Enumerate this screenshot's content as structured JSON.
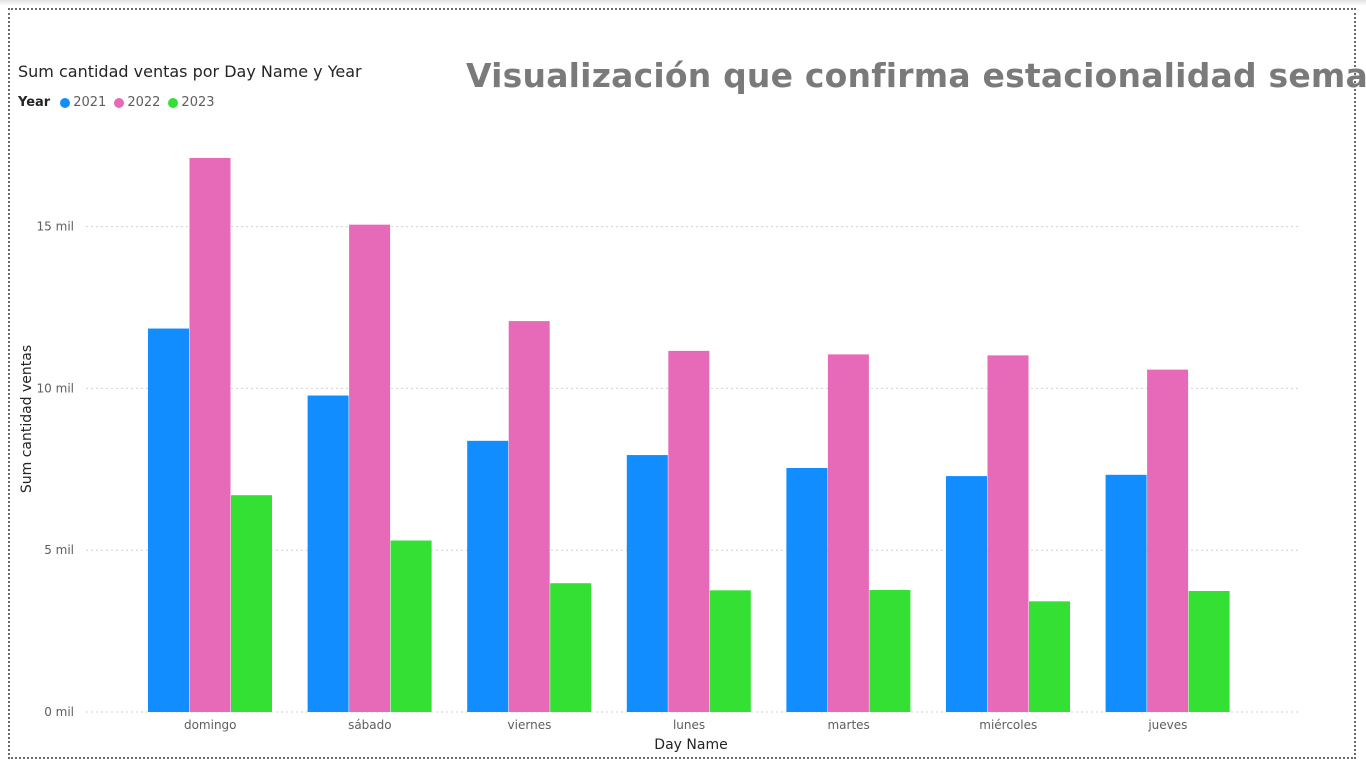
{
  "headline": "Visualización que confirma estacionalidad semanal",
  "legend": {
    "title": "Year",
    "items": [
      {
        "label": "2021",
        "color": "#118dff"
      },
      {
        "label": "2022",
        "color": "#e66ab8"
      },
      {
        "label": "2023",
        "color": "#34e034"
      }
    ]
  },
  "chart_data": {
    "type": "bar",
    "title": "Sum cantidad ventas por Day Name y Year",
    "xlabel": "Day Name",
    "ylabel": "Sum cantidad ventas",
    "categories": [
      "domingo",
      "sábado",
      "viernes",
      "lunes",
      "martes",
      "miércoles",
      "jueves"
    ],
    "series": [
      {
        "name": "2021",
        "color": "#118dff",
        "values": [
          11850,
          9780,
          8380,
          7940,
          7540,
          7290,
          7330
        ]
      },
      {
        "name": "2022",
        "color": "#e66ab8",
        "values": [
          17120,
          15060,
          12080,
          11160,
          11050,
          11020,
          10580
        ]
      },
      {
        "name": "2023",
        "color": "#34e034",
        "values": [
          6700,
          5300,
          3980,
          3760,
          3770,
          3420,
          3740
        ]
      }
    ],
    "yticks": [
      {
        "value": 0,
        "label": "0 mil"
      },
      {
        "value": 5000,
        "label": "5 mil"
      },
      {
        "value": 10000,
        "label": "10 mil"
      },
      {
        "value": 15000,
        "label": "15 mil"
      }
    ],
    "ylim": [
      0,
      17120
    ],
    "grid": true,
    "legend_position": "top-left"
  }
}
